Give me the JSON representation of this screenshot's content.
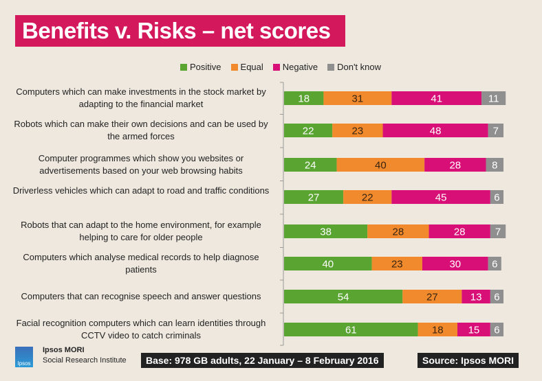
{
  "chart_data": {
    "type": "bar",
    "orientation": "horizontal",
    "stacked": true,
    "title": "Benefits v. Risks – net scores",
    "categories": [
      "Computers which can make investments in the stock market by adapting to the financial market",
      "Robots which can make their own decisions and can be used by the armed forces",
      "Computer programmes which show you websites or advertisements based on your web browsing habits",
      "Driverless vehicles which can adapt to road and traffic conditions",
      "Robots that can adapt to the home environment, for example helping to care for older people",
      "Computers which analyse medical records to help diagnose patients",
      "Computers that can recognise speech and answer questions",
      "Facial recognition computers which can learn identities through CCTV video to catch criminals"
    ],
    "series": [
      {
        "name": "Positive",
        "color": "#5aa532",
        "label_color": "#ffffff",
        "values": [
          18,
          22,
          24,
          27,
          38,
          40,
          54,
          61
        ]
      },
      {
        "name": "Equal",
        "color": "#f08a2c",
        "label_color": "#3a2410",
        "values": [
          31,
          23,
          40,
          22,
          28,
          23,
          27,
          18
        ]
      },
      {
        "name": "Negative",
        "color": "#d90f78",
        "label_color": "#ffffff",
        "values": [
          41,
          48,
          28,
          45,
          28,
          30,
          13,
          15
        ]
      },
      {
        "name": "Don't know",
        "color": "#8f8f8f",
        "label_color": "#ffffff",
        "values": [
          11,
          7,
          8,
          6,
          7,
          6,
          6,
          6
        ]
      }
    ],
    "xlim": [
      0,
      100
    ],
    "legend": "top",
    "grid": false
  },
  "footer": {
    "org_name": "Ipsos MORI",
    "org_sub": "Social Research Institute",
    "logo_text": "Ipsos",
    "base": "Base: 978 GB adults, 22 January – 8 February 2016",
    "source": "Source: Ipsos MORI"
  }
}
